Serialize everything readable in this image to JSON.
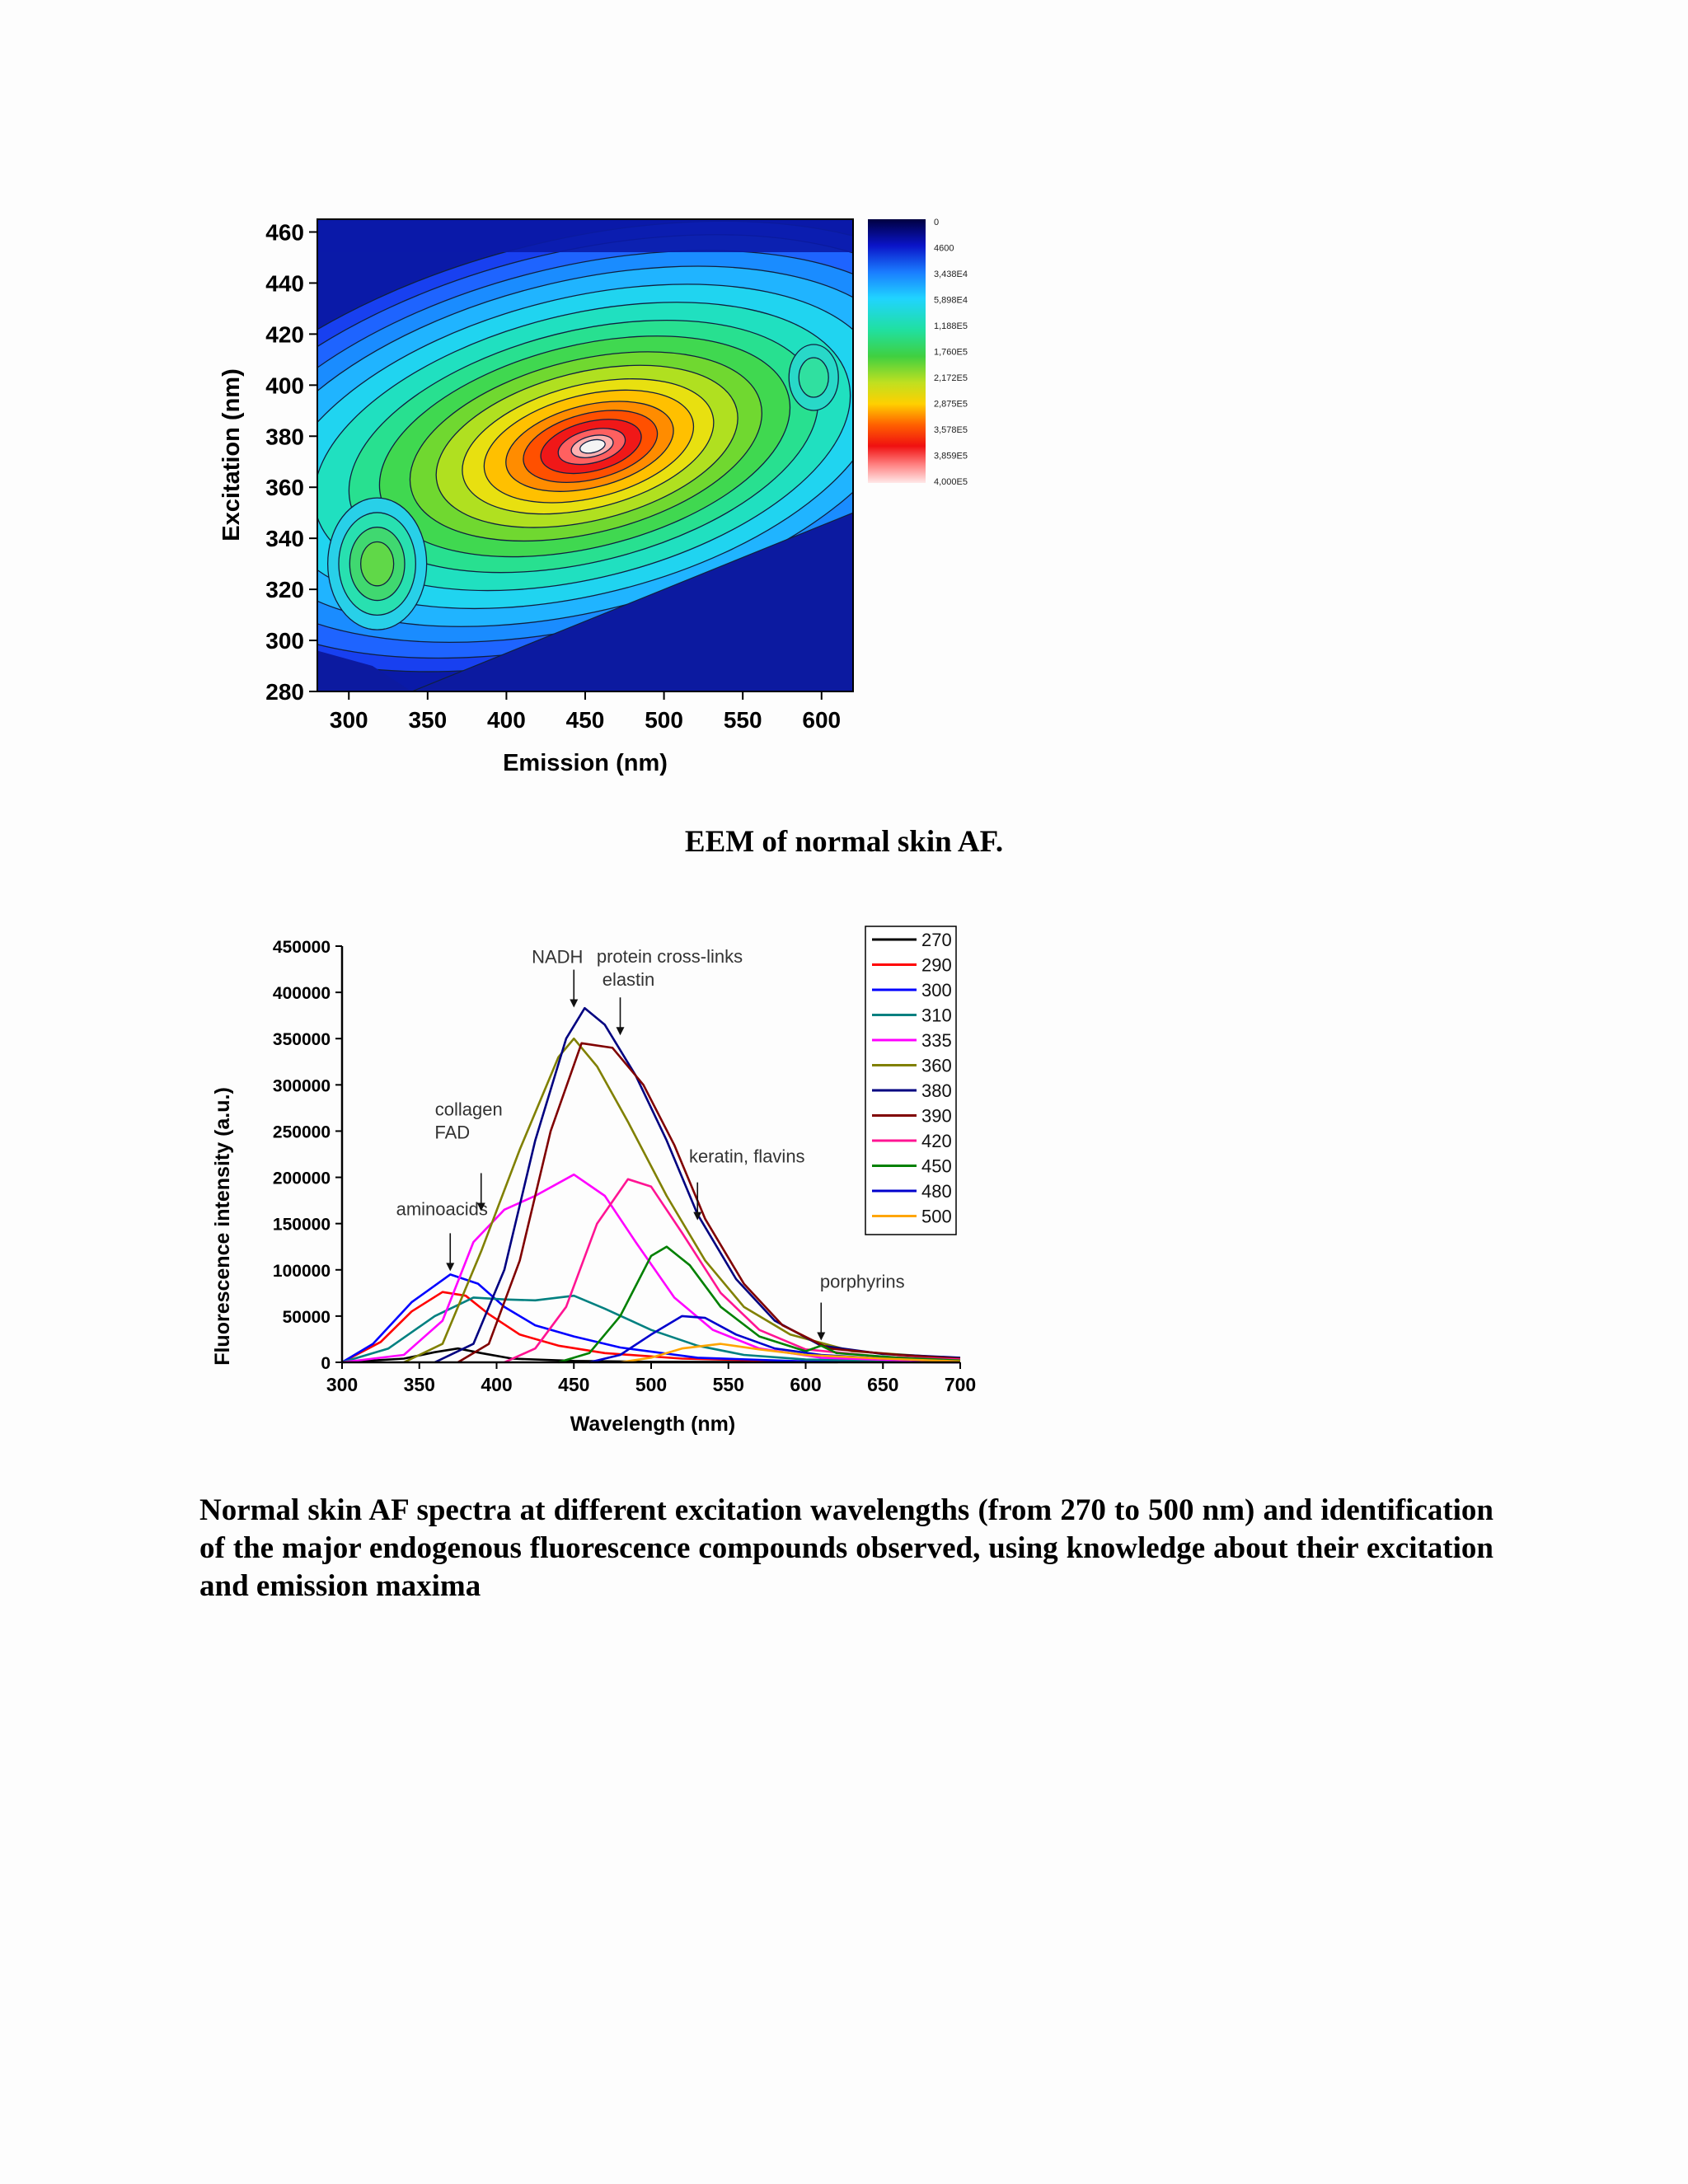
{
  "captions": {
    "fig1": "EEM of normal skin AF.",
    "fig2": "Normal skin AF spectra at different excitation wavelengths (from 270 to 500 nm) and identification of the major endogenous fluorescence compounds observed, using knowledge about their excitation and emission maxima"
  },
  "chart_data": [
    {
      "type": "heatmap",
      "xlabel": "Emission (nm)",
      "ylabel": "Excitation (nm)",
      "xlim": [
        280,
        620
      ],
      "ylim": [
        280,
        465
      ],
      "x_ticks": [
        "300",
        "350",
        "400",
        "450",
        "500",
        "550",
        "600"
      ],
      "y_ticks": [
        "280",
        "300",
        "320",
        "340",
        "360",
        "380",
        "400",
        "420",
        "440",
        "460"
      ],
      "colorbar_labels": [
        "0",
        "4600",
        "3,438E4",
        "5,898E4",
        "1,188E5",
        "1,760E5",
        "2,172E5",
        "2,875E5",
        "3,578E5",
        "3,859E5",
        "4,000E5"
      ],
      "peaks": [
        {
          "emission": 455,
          "excitation": 376,
          "value": 400000
        },
        {
          "emission": 318,
          "excitation": 330,
          "value": 90000
        },
        {
          "emission": 595,
          "excitation": 403,
          "value": 60000
        }
      ]
    },
    {
      "type": "line",
      "xlabel": "Wavelength (nm)",
      "ylabel": "Fluorescence intensity (a.u.)",
      "xlim": [
        300,
        700
      ],
      "ylim": [
        0,
        450000
      ],
      "x_ticks": [
        "300",
        "350",
        "400",
        "450",
        "500",
        "550",
        "600",
        "650",
        "700"
      ],
      "y_ticks": [
        "0",
        "50000",
        "100000",
        "150000",
        "200000",
        "250000",
        "300000",
        "350000",
        "400000",
        "450000"
      ],
      "legend_position": "top-right",
      "series": [
        {
          "name": "270",
          "color": "#000000",
          "points": [
            [
              300,
              0
            ],
            [
              340,
              4000
            ],
            [
              360,
              11000
            ],
            [
              375,
              15000
            ],
            [
              390,
              10000
            ],
            [
              410,
              4000
            ],
            [
              450,
              1500
            ],
            [
              500,
              500
            ],
            [
              700,
              0
            ]
          ]
        },
        {
          "name": "290",
          "color": "#ff0000",
          "points": [
            [
              300,
              0
            ],
            [
              325,
              22000
            ],
            [
              345,
              55000
            ],
            [
              365,
              76000
            ],
            [
              380,
              72000
            ],
            [
              395,
              52000
            ],
            [
              415,
              30000
            ],
            [
              440,
              18000
            ],
            [
              470,
              10000
            ],
            [
              520,
              4000
            ],
            [
              600,
              1000
            ],
            [
              700,
              0
            ]
          ]
        },
        {
          "name": "300",
          "color": "#0000ff",
          "points": [
            [
              300,
              0
            ],
            [
              320,
              20000
            ],
            [
              345,
              65000
            ],
            [
              370,
              95000
            ],
            [
              388,
              85000
            ],
            [
              405,
              60000
            ],
            [
              425,
              40000
            ],
            [
              450,
              28000
            ],
            [
              480,
              16000
            ],
            [
              530,
              5000
            ],
            [
              600,
              1000
            ],
            [
              700,
              0
            ]
          ]
        },
        {
          "name": "310",
          "color": "#008080",
          "points": [
            [
              300,
              0
            ],
            [
              330,
              15000
            ],
            [
              360,
              50000
            ],
            [
              385,
              70000
            ],
            [
              405,
              68000
            ],
            [
              425,
              67000
            ],
            [
              450,
              72000
            ],
            [
              470,
              58000
            ],
            [
              500,
              35000
            ],
            [
              530,
              18000
            ],
            [
              560,
              8000
            ],
            [
              600,
              3000
            ],
            [
              700,
              0
            ]
          ]
        },
        {
          "name": "335",
          "color": "#ff00ff",
          "points": [
            [
              300,
              0
            ],
            [
              340,
              8000
            ],
            [
              365,
              45000
            ],
            [
              385,
              130000
            ],
            [
              405,
              165000
            ],
            [
              425,
              180000
            ],
            [
              450,
              203000
            ],
            [
              470,
              180000
            ],
            [
              490,
              130000
            ],
            [
              515,
              70000
            ],
            [
              540,
              35000
            ],
            [
              570,
              15000
            ],
            [
              610,
              5000
            ],
            [
              700,
              0
            ]
          ]
        },
        {
          "name": "360",
          "color": "#808000",
          "points": [
            [
              340,
              0
            ],
            [
              365,
              20000
            ],
            [
              390,
              120000
            ],
            [
              415,
              230000
            ],
            [
              440,
              330000
            ],
            [
              450,
              350000
            ],
            [
              465,
              320000
            ],
            [
              485,
              260000
            ],
            [
              510,
              180000
            ],
            [
              535,
              110000
            ],
            [
              560,
              60000
            ],
            [
              590,
              30000
            ],
            [
              630,
              12000
            ],
            [
              700,
              4000
            ]
          ]
        },
        {
          "name": "380",
          "color": "#000080",
          "points": [
            [
              360,
              0
            ],
            [
              385,
              20000
            ],
            [
              405,
              100000
            ],
            [
              425,
              240000
            ],
            [
              445,
              350000
            ],
            [
              457,
              383000
            ],
            [
              470,
              365000
            ],
            [
              490,
              310000
            ],
            [
              510,
              240000
            ],
            [
              530,
              160000
            ],
            [
              555,
              90000
            ],
            [
              580,
              45000
            ],
            [
              610,
              18000
            ],
            [
              650,
              9000
            ],
            [
              700,
              5000
            ]
          ]
        },
        {
          "name": "390",
          "color": "#800000",
          "points": [
            [
              375,
              0
            ],
            [
              395,
              20000
            ],
            [
              415,
              110000
            ],
            [
              435,
              250000
            ],
            [
              455,
              345000
            ],
            [
              475,
              340000
            ],
            [
              495,
              300000
            ],
            [
              515,
              235000
            ],
            [
              535,
              155000
            ],
            [
              560,
              85000
            ],
            [
              585,
              40000
            ],
            [
              615,
              15000
            ],
            [
              660,
              8000
            ],
            [
              700,
              4000
            ]
          ]
        },
        {
          "name": "420",
          "color": "#ff1493",
          "points": [
            [
              405,
              0
            ],
            [
              425,
              15000
            ],
            [
              445,
              60000
            ],
            [
              465,
              150000
            ],
            [
              485,
              198000
            ],
            [
              500,
              190000
            ],
            [
              520,
              140000
            ],
            [
              545,
              75000
            ],
            [
              570,
              35000
            ],
            [
              600,
              14000
            ],
            [
              650,
              6000
            ],
            [
              700,
              3000
            ]
          ]
        },
        {
          "name": "450",
          "color": "#008000",
          "points": [
            [
              440,
              0
            ],
            [
              460,
              10000
            ],
            [
              480,
              50000
            ],
            [
              500,
              115000
            ],
            [
              510,
              125000
            ],
            [
              525,
              105000
            ],
            [
              545,
              60000
            ],
            [
              570,
              28000
            ],
            [
              600,
              12000
            ],
            [
              610,
              18000
            ],
            [
              620,
              10000
            ],
            [
              660,
              5000
            ],
            [
              700,
              2000
            ]
          ]
        },
        {
          "name": "480",
          "color": "#0000cd",
          "points": [
            [
              460,
              0
            ],
            [
              480,
              8000
            ],
            [
              500,
              30000
            ],
            [
              520,
              50000
            ],
            [
              535,
              48000
            ],
            [
              555,
              30000
            ],
            [
              580,
              15000
            ],
            [
              610,
              8000
            ],
            [
              650,
              4000
            ],
            [
              700,
              1000
            ]
          ]
        },
        {
          "name": "500",
          "color": "#ffa500",
          "points": [
            [
              480,
              0
            ],
            [
              500,
              5000
            ],
            [
              520,
              15000
            ],
            [
              545,
              20000
            ],
            [
              570,
              14000
            ],
            [
              600,
              8000
            ],
            [
              650,
              4000
            ],
            [
              700,
              1000
            ]
          ]
        }
      ],
      "annotations": [
        {
          "text": "aminoacids",
          "x": 370,
          "y": 95000
        },
        {
          "text": "collagen",
          "x": 390,
          "y": 160000
        },
        {
          "text": "FAD",
          "x": 390,
          "y": 160000
        },
        {
          "text": "NADH",
          "x": 450,
          "y": 380000
        },
        {
          "text": "protein cross-links",
          "x": 480,
          "y": 350000
        },
        {
          "text": "elastin",
          "x": 480,
          "y": 350000
        },
        {
          "text": "keratin, flavins",
          "x": 530,
          "y": 150000
        },
        {
          "text": "porphyrins",
          "x": 610,
          "y": 20000
        }
      ]
    }
  ]
}
